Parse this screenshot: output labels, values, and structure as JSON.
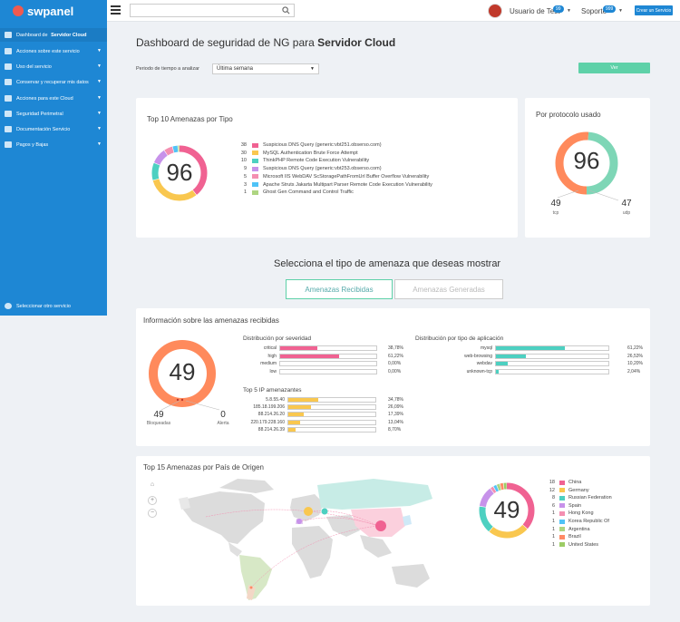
{
  "header": {
    "logo": "swpanel",
    "user": "Usuario de Test",
    "user_badge": "99",
    "support": "Soporte",
    "support_badge": "999",
    "create_button": "Crear un Servicio"
  },
  "sidebar": {
    "items": [
      {
        "label": "Dashboard de Servidor Cloud",
        "icon": "dashboard-icon",
        "active": true
      },
      {
        "label": "Acciones sobre este servicio",
        "icon": "gears-icon"
      },
      {
        "label": "Uso del servicio",
        "icon": "chart-icon"
      },
      {
        "label": "Conservar y recuperar mis datos",
        "icon": "database-icon"
      },
      {
        "label": "Acciones para este Cloud",
        "icon": "briefcase-icon"
      },
      {
        "label": "Seguridad Perimetral",
        "icon": "shield-icon"
      },
      {
        "label": "Documentación Servicio",
        "icon": "folder-icon"
      },
      {
        "label": "Pagos y Bajas",
        "icon": "document-icon"
      }
    ],
    "bottom": "Seleccionar otro servicio"
  },
  "main": {
    "title_prefix": "Dashboard de seguridad de NG para ",
    "title_bold": "Servidor Cloud",
    "period_label": "Periodo de tiempo a analizar",
    "period_value": "Última semana",
    "view_button": "Ver"
  },
  "top10": {
    "title": "Top 10 Amenazas por Tipo",
    "total": "96",
    "items": [
      {
        "count": "38",
        "label": "Suspicious DNS Query (generic:vbt251.obserso.com)",
        "color": "#f06292"
      },
      {
        "count": "30",
        "label": "MySQL Authentication Brute Force Attempt",
        "color": "#f9c74f"
      },
      {
        "count": "10",
        "label": "ThinkPHP Remote Code Execution Vulnerability",
        "color": "#4dd0c1"
      },
      {
        "count": "9",
        "label": "Suspicious DNS Query (generic:vbt253.obserso.com)",
        "color": "#c792ea"
      },
      {
        "count": "5",
        "label": "Microsoft IIS WebDAV ScStoragePathFromUrl Buffer Overflow Vulnerability",
        "color": "#f48fb1"
      },
      {
        "count": "3",
        "label": "Apache Struts Jakarta Multipart Parser Remote Code Execution Vulnerability",
        "color": "#4fc3f7"
      },
      {
        "count": "1",
        "label": "Ghost Gen Command and Control Traffic",
        "color": "#aed581"
      }
    ]
  },
  "protocol": {
    "title": "Por protocolo usado",
    "total": "96",
    "left_value": "49",
    "left_label": "tcp",
    "right_value": "47",
    "right_label": "udp"
  },
  "threat_section": {
    "title": "Selecciona el tipo de amenaza que deseas mostrar",
    "tab_received": "Amenazas Recibidas",
    "tab_generated": "Amenazas Generadas"
  },
  "received": {
    "title": "Información sobre las amenazas recibidas",
    "total": "49",
    "blocked_value": "49",
    "blocked_label": "Bloqueadas",
    "alert_value": "0",
    "alert_label": "Alerta",
    "severity_title": "Distribución por severidad",
    "severity": [
      {
        "label": "critical",
        "pct": "38,78%",
        "value": 0.3878
      },
      {
        "label": "high",
        "pct": "61,22%",
        "value": 0.6122
      },
      {
        "label": "medium",
        "pct": "0,00%",
        "value": 0
      },
      {
        "label": "low",
        "pct": "0,00%",
        "value": 0
      }
    ],
    "app_title": "Distribución por tipo de aplicación",
    "apps": [
      {
        "label": "mysql",
        "pct": "61,22%",
        "value": 0.6122
      },
      {
        "label": "web-browsing",
        "pct": "26,53%",
        "value": 0.2653
      },
      {
        "label": "webdav",
        "pct": "10,20%",
        "value": 0.102
      },
      {
        "label": "unknown-tcp",
        "pct": "2,04%",
        "value": 0.0204
      }
    ],
    "ip_title": "Top 5 IP amenazantes",
    "ips": [
      {
        "label": "5.8.55.40",
        "pct": "34,78%",
        "value": 0.3478
      },
      {
        "label": "185.18.199.206",
        "pct": "26,09%",
        "value": 0.2609
      },
      {
        "label": "88.214.26.20",
        "pct": "17,39%",
        "value": 0.1739
      },
      {
        "label": "220.179.228.160",
        "pct": "13,04%",
        "value": 0.1304
      },
      {
        "label": "88.214.26.39",
        "pct": "8,70%",
        "value": 0.087
      }
    ]
  },
  "countries": {
    "title": "Top 15 Amenazas por País de Origen",
    "total": "49",
    "items": [
      {
        "count": "18",
        "label": "China",
        "color": "#f06292"
      },
      {
        "count": "12",
        "label": "Germany",
        "color": "#f9c74f"
      },
      {
        "count": "8",
        "label": "Russian Federation",
        "color": "#4dd0c1"
      },
      {
        "count": "6",
        "label": "Spain",
        "color": "#c792ea"
      },
      {
        "count": "1",
        "label": "Hong Kong",
        "color": "#f48fb1"
      },
      {
        "count": "1",
        "label": "Korea Republic Of",
        "color": "#4fc3f7"
      },
      {
        "count": "1",
        "label": "Argentina",
        "color": "#aed581"
      },
      {
        "count": "1",
        "label": "Brazil",
        "color": "#ff8a65"
      },
      {
        "count": "1",
        "label": "United States",
        "color": "#9ccc65"
      }
    ]
  },
  "colors": {
    "brand": "#1e87d4",
    "accent": "#5ed1a8",
    "orange": "#ff8a5c",
    "pink": "#f06292",
    "teal": "#4dd0c1",
    "yellow": "#f9c74f"
  }
}
